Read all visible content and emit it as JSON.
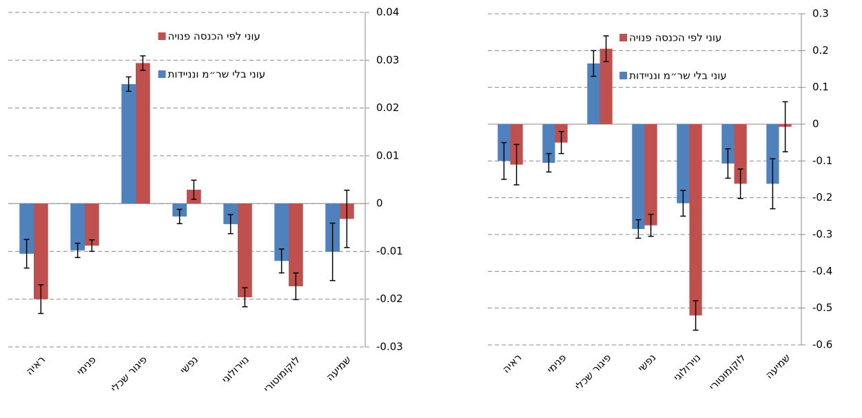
{
  "chart_data": [
    {
      "type": "bar",
      "grid": true,
      "legend": "top",
      "categories": [
        "ראיה",
        "פנימי",
        "פיגור שכלי",
        "נפשי",
        "נוירולוגי",
        "לוקומוטורי",
        "שמיעה"
      ],
      "ylim": [
        -0.03,
        0.04
      ],
      "yticks": [
        -0.03,
        -0.02,
        -0.01,
        0,
        0.01,
        0.02,
        0.03,
        0.04
      ],
      "series": [
        {
          "name": "עוני בלי שר״מ ונניידות",
          "color": "#4f81bd",
          "values": [
            -0.0105,
            -0.0098,
            0.025,
            -0.0027,
            -0.0043,
            -0.012,
            -0.0101
          ],
          "errors": [
            0.003,
            0.0015,
            0.0015,
            0.0015,
            0.002,
            0.0025,
            0.006
          ]
        },
        {
          "name": "עוני לפי הכנסה פנויה",
          "color": "#c0504d",
          "values": [
            -0.02,
            -0.0088,
            0.0294,
            0.0029,
            -0.0196,
            -0.0173,
            -0.0032
          ],
          "errors": [
            0.003,
            0.0012,
            0.0015,
            0.002,
            0.002,
            0.0028,
            0.006
          ]
        }
      ]
    },
    {
      "type": "bar",
      "grid": true,
      "legend": "top",
      "categories": [
        "ראיה",
        "פנימי",
        "פיגור שכלי",
        "נפשי",
        "נוירולוגי",
        "לוקומוטורי",
        "שמיעה"
      ],
      "ylim": [
        -0.6,
        0.3
      ],
      "yticks": [
        -0.6,
        -0.5,
        -0.4,
        -0.3,
        -0.2,
        -0.1,
        0,
        0.1,
        0.2,
        0.3
      ],
      "series": [
        {
          "name": "עוני בלי שר״מ ונניידות",
          "color": "#4f81bd",
          "values": [
            -0.1,
            -0.105,
            0.165,
            -0.285,
            -0.215,
            -0.107,
            -0.162
          ],
          "errors": [
            0.05,
            0.025,
            0.035,
            0.025,
            0.035,
            0.04,
            0.068
          ]
        },
        {
          "name": "עוני לפי הכנסה פנויה",
          "color": "#c0504d",
          "values": [
            -0.11,
            -0.05,
            0.205,
            -0.275,
            -0.52,
            -0.162,
            -0.007
          ],
          "errors": [
            0.055,
            0.03,
            0.035,
            0.03,
            0.04,
            0.04,
            0.068
          ]
        }
      ]
    }
  ]
}
